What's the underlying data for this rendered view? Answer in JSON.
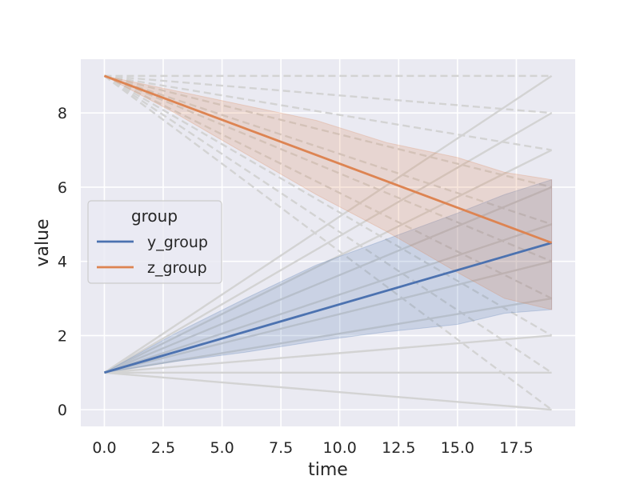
{
  "chart_data": {
    "type": "line",
    "title": "",
    "xlabel": "time",
    "ylabel": "value",
    "xlim": [
      -1,
      20
    ],
    "ylim": [
      -0.45,
      9.45
    ],
    "xticks": [
      0.0,
      2.5,
      5.0,
      7.5,
      10.0,
      12.5,
      15.0,
      17.5
    ],
    "xtick_labels": [
      "0.0",
      "2.5",
      "5.0",
      "7.5",
      "10.0",
      "12.5",
      "15.0",
      "17.5"
    ],
    "yticks": [
      0,
      2,
      4,
      6,
      8
    ],
    "ytick_labels": [
      "0",
      "2",
      "4",
      "6",
      "8"
    ],
    "grid": true,
    "legend": {
      "title": "group",
      "placement": "center-left",
      "entries": [
        "y_group",
        "z_group"
      ]
    },
    "series": [
      {
        "name": "y_group",
        "color": "#4c72b0",
        "x": [
          0,
          19
        ],
        "values": [
          1.0,
          4.5
        ],
        "ci_x": [
          0,
          3,
          6,
          9,
          12,
          15,
          17,
          19
        ],
        "ci_lower": [
          1.0,
          1.3,
          1.55,
          1.85,
          2.1,
          2.3,
          2.6,
          2.7
        ],
        "ci_upper": [
          1.0,
          2.05,
          3.0,
          3.9,
          4.6,
          5.3,
          5.8,
          6.2
        ]
      },
      {
        "name": "z_group",
        "color": "#dd8452",
        "x": [
          0,
          19
        ],
        "values": [
          9.0,
          4.5
        ],
        "ci_x": [
          0,
          3,
          6,
          9,
          12,
          15,
          17,
          19
        ],
        "ci_lower": [
          9.0,
          8.0,
          6.9,
          5.8,
          4.8,
          3.7,
          3.0,
          2.7
        ],
        "ci_upper": [
          9.0,
          8.6,
          8.2,
          7.8,
          7.2,
          6.8,
          6.4,
          6.2
        ]
      }
    ],
    "background_lines": {
      "color": "#d3d3d3",
      "solid": [
        {
          "x": [
            0,
            19
          ],
          "y": [
            1,
            0
          ]
        },
        {
          "x": [
            0,
            19
          ],
          "y": [
            1,
            1
          ]
        },
        {
          "x": [
            0,
            19
          ],
          "y": [
            1,
            2
          ]
        },
        {
          "x": [
            0,
            19
          ],
          "y": [
            1,
            3
          ]
        },
        {
          "x": [
            0,
            19
          ],
          "y": [
            1,
            4
          ]
        },
        {
          "x": [
            0,
            19
          ],
          "y": [
            1,
            5
          ]
        },
        {
          "x": [
            0,
            19
          ],
          "y": [
            1,
            6
          ]
        },
        {
          "x": [
            0,
            19
          ],
          "y": [
            1,
            7
          ]
        },
        {
          "x": [
            0,
            19
          ],
          "y": [
            1,
            8
          ]
        },
        {
          "x": [
            0,
            19
          ],
          "y": [
            1,
            9
          ]
        }
      ],
      "dashed": [
        {
          "x": [
            0,
            19
          ],
          "y": [
            9,
            9
          ]
        },
        {
          "x": [
            0,
            19
          ],
          "y": [
            9,
            8
          ]
        },
        {
          "x": [
            0,
            19
          ],
          "y": [
            9,
            7
          ]
        },
        {
          "x": [
            0,
            19
          ],
          "y": [
            9,
            6
          ]
        },
        {
          "x": [
            0,
            19
          ],
          "y": [
            9,
            5
          ]
        },
        {
          "x": [
            0,
            19
          ],
          "y": [
            9,
            4
          ]
        },
        {
          "x": [
            0,
            19
          ],
          "y": [
            9,
            3
          ]
        },
        {
          "x": [
            0,
            19
          ],
          "y": [
            9,
            2
          ]
        },
        {
          "x": [
            0,
            19
          ],
          "y": [
            9,
            1
          ]
        },
        {
          "x": [
            0,
            19
          ],
          "y": [
            9,
            0
          ]
        }
      ]
    },
    "colors": {
      "plot_bg": "#eaeaf2",
      "grid": "#ffffff"
    }
  }
}
